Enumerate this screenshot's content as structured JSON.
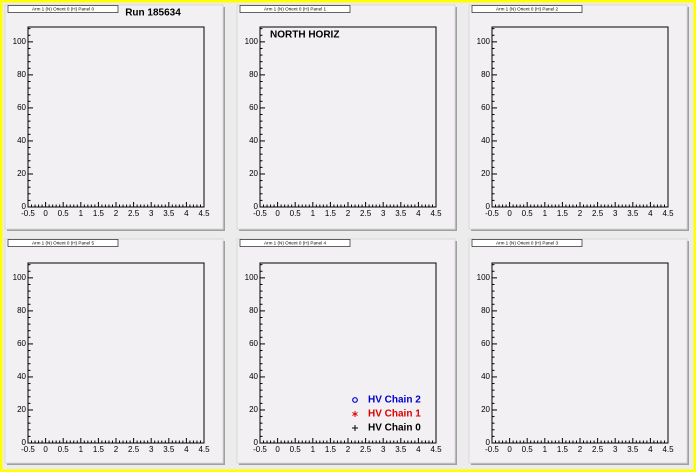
{
  "chart_data": [
    {
      "type": "scatter",
      "title": "Arm 1 (N) Orient 0 (H) Panel 0",
      "annotation": "Run 185634",
      "xlim": [
        -0.5,
        4.5
      ],
      "xticks": [
        -0.5,
        0,
        0.5,
        1,
        1.5,
        2,
        2.5,
        3,
        3.5,
        4,
        4.5
      ],
      "ylim": [
        0,
        109
      ],
      "yticks": [
        0,
        20,
        40,
        60,
        80,
        100
      ]
    },
    {
      "type": "scatter",
      "title": "Arm 1 (N) Orient 0 (H) Panel 1",
      "annotation": "NORTH HORIZ",
      "xlim": [
        -0.5,
        4.5
      ],
      "xticks": [
        -0.5,
        0,
        0.5,
        1,
        1.5,
        2,
        2.5,
        3,
        3.5,
        4,
        4.5
      ],
      "ylim": [
        0,
        109
      ],
      "yticks": [
        0,
        20,
        40,
        60,
        80,
        100
      ]
    },
    {
      "type": "scatter",
      "title": "Arm 1 (N) Orient 0 (H) Panel 2",
      "xlim": [
        -0.5,
        4.5
      ],
      "xticks": [
        -0.5,
        0,
        0.5,
        1,
        1.5,
        2,
        2.5,
        3,
        3.5,
        4,
        4.5
      ],
      "ylim": [
        0,
        109
      ],
      "yticks": [
        0,
        20,
        40,
        60,
        80,
        100
      ]
    },
    {
      "type": "scatter",
      "title": "Arm 1 (N) Orient 0 (H) Panel 5",
      "xlim": [
        -0.5,
        4.5
      ],
      "xticks": [
        -0.5,
        0,
        0.5,
        1,
        1.5,
        2,
        2.5,
        3,
        3.5,
        4,
        4.5
      ],
      "ylim": [
        0,
        109
      ],
      "yticks": [
        0,
        20,
        40,
        60,
        80,
        100
      ]
    },
    {
      "type": "scatter",
      "title": "Arm 1 (N) Orient 0 (H) Panel 4",
      "xlim": [
        -0.5,
        4.5
      ],
      "xticks": [
        -0.5,
        0,
        0.5,
        1,
        1.5,
        2,
        2.5,
        3,
        3.5,
        4,
        4.5
      ],
      "ylim": [
        0,
        109
      ],
      "yticks": [
        0,
        20,
        40,
        60,
        80,
        100
      ],
      "series": [
        {
          "name": "HV Chain 2",
          "color": "#0000cc",
          "marker": "circle",
          "x": [],
          "values": []
        },
        {
          "name": "HV Chain 1",
          "color": "#dd0000",
          "marker": "star",
          "x": [],
          "values": []
        },
        {
          "name": "HV Chain 0",
          "color": "#000000",
          "marker": "plus",
          "x": [],
          "values": []
        }
      ]
    },
    {
      "type": "scatter",
      "title": "Arm 1 (N) Orient 0 (H) Panel 3",
      "xlim": [
        -0.5,
        4.5
      ],
      "xticks": [
        -0.5,
        0,
        0.5,
        1,
        1.5,
        2,
        2.5,
        3,
        3.5,
        4,
        4.5
      ],
      "ylim": [
        0,
        109
      ],
      "yticks": [
        0,
        20,
        40,
        60,
        80,
        100
      ]
    }
  ]
}
